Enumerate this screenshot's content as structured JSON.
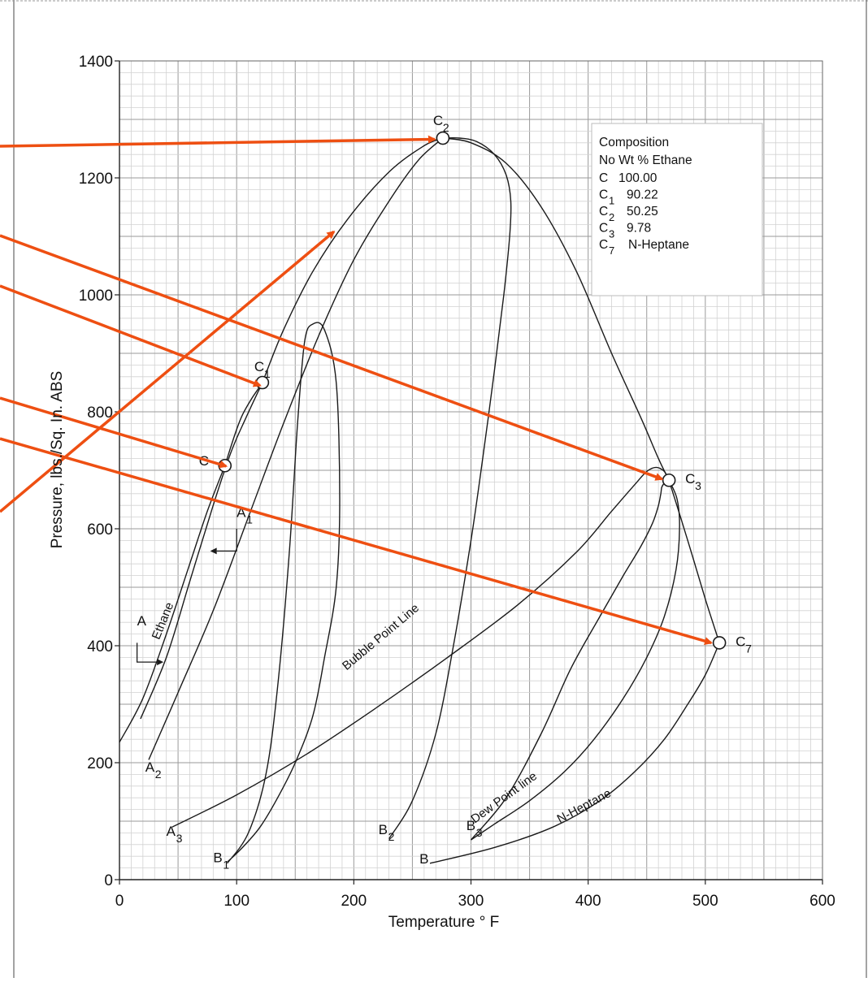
{
  "chart_data": {
    "type": "line",
    "xlabel": "Temperature  ° F",
    "ylabel": "Pressure, lbs./Sq. In. ABS",
    "xlim": [
      0,
      600
    ],
    "ylim": [
      0,
      1400
    ],
    "x_ticks": [
      "0",
      "100",
      "200",
      "300",
      "400",
      "500",
      "600"
    ],
    "y_ticks": [
      "0",
      "200",
      "400",
      "600",
      "800",
      "1000",
      "1200",
      "1400"
    ],
    "grid": true,
    "legend": {
      "title": "Composition",
      "header": "No Wt % Ethane",
      "rows": [
        {
          "sym": "C",
          "sub": "",
          "val": "100.00"
        },
        {
          "sym": "C",
          "sub": "1",
          "val": "90.22"
        },
        {
          "sym": "C",
          "sub": "2",
          "val": "50.25"
        },
        {
          "sym": "C",
          "sub": "3",
          "val": "9.78"
        },
        {
          "sym": "C",
          "sub": "7",
          "val": "N-Heptane"
        }
      ],
      "placement": "top-right"
    },
    "critical_points": [
      {
        "label": "C",
        "sub": "",
        "x": 90,
        "y": 708
      },
      {
        "label": "C",
        "sub": "1",
        "x": 122,
        "y": 850
      },
      {
        "label": "C",
        "sub": "2",
        "x": 276,
        "y": 1268
      },
      {
        "label": "C",
        "sub": "3",
        "x": 469,
        "y": 683
      },
      {
        "label": "C",
        "sub": "7",
        "x": 512,
        "y": 405
      }
    ],
    "series": [
      {
        "name": "Ethane",
        "x": [
          0,
          20,
          40,
          60,
          75,
          90
        ],
        "y": [
          235,
          310,
          420,
          540,
          630,
          708
        ]
      },
      {
        "x": [
          18,
          40,
          60,
          80,
          95,
          108,
          122
        ],
        "y": [
          275,
          380,
          510,
          640,
          730,
          790,
          850
        ]
      },
      {
        "x": [
          90,
          95,
          100,
          105,
          112,
          118,
          122
        ],
        "y": [
          708,
          740,
          770,
          795,
          820,
          838,
          850
        ]
      },
      {
        "x": [
          25,
          50,
          80,
          110,
          140,
          170,
          200,
          230,
          255,
          276
        ],
        "y": [
          205,
          320,
          460,
          620,
          780,
          930,
          1060,
          1160,
          1230,
          1268
        ]
      },
      {
        "x": [
          122,
          140,
          165,
          195,
          230,
          260,
          276
        ],
        "y": [
          850,
          940,
          1040,
          1130,
          1210,
          1255,
          1268
        ]
      },
      {
        "x": [
          92,
          110,
          125,
          135,
          145,
          152,
          158,
          165,
          175,
          185,
          188,
          185,
          175,
          165,
          150,
          135,
          120,
          105,
          92
        ],
        "y": [
          28,
          80,
          180,
          330,
          560,
          780,
          920,
          950,
          940,
          850,
          650,
          500,
          380,
          280,
          200,
          140,
          90,
          55,
          30
        ]
      },
      {
        "x": [
          230,
          250,
          270,
          285,
          300,
          310,
          320,
          328,
          333,
          334,
          330,
          320,
          305,
          290,
          276
        ],
        "y": [
          70,
          135,
          250,
          400,
          580,
          720,
          870,
          1000,
          1100,
          1160,
          1205,
          1240,
          1262,
          1268,
          1268
        ]
      },
      {
        "x": [
          300,
          330,
          360,
          385,
          410,
          430,
          445,
          455,
          460,
          462,
          463,
          466,
          469
        ],
        "y": [
          68,
          140,
          250,
          360,
          450,
          520,
          570,
          610,
          640,
          660,
          672,
          680,
          683
        ]
      },
      {
        "x": [
          276,
          300,
          330,
          360,
          390,
          420,
          445,
          460,
          469
        ],
        "y": [
          1268,
          1260,
          1225,
          1150,
          1040,
          900,
          790,
          720,
          683
        ]
      },
      {
        "name": "Bubble Point Line",
        "x": [
          45,
          100,
          160,
          220,
          280,
          340,
          390,
          420,
          440,
          450,
          458,
          465,
          469
        ],
        "y": [
          90,
          145,
          215,
          295,
          380,
          470,
          560,
          630,
          676,
          698,
          705,
          698,
          683
        ]
      },
      {
        "name": "Dew Point line",
        "x": [
          469,
          476,
          478,
          475,
          465,
          450,
          430,
          405,
          380,
          350,
          320,
          300
        ],
        "y": [
          683,
          650,
          600,
          530,
          450,
          380,
          310,
          240,
          185,
          135,
          95,
          68
        ]
      },
      {
        "x": [
          469,
          485,
          500,
          512
        ],
        "y": [
          683,
          580,
          480,
          405
        ]
      },
      {
        "name": "N-Heptane",
        "x": [
          265,
          320,
          370,
          410,
          440,
          465,
          485,
          500,
          512
        ],
        "y": [
          28,
          55,
          90,
          135,
          185,
          240,
          300,
          350,
          405
        ]
      }
    ],
    "annotations": [
      {
        "text": "A",
        "sub": "",
        "x": 15,
        "y": 435
      },
      {
        "text": "A",
        "sub": "1",
        "x": 100,
        "y": 620
      },
      {
        "text": "A",
        "sub": "2",
        "x": 22,
        "y": 185
      },
      {
        "text": "A",
        "sub": "3",
        "x": 40,
        "y": 75
      },
      {
        "text": "B",
        "sub": "",
        "x": 256,
        "y": 28
      },
      {
        "text": "B",
        "sub": "1",
        "x": 80,
        "y": 30
      },
      {
        "text": "B",
        "sub": "2",
        "x": 221,
        "y": 78
      },
      {
        "text": "B",
        "sub": "3",
        "x": 296,
        "y": 85
      },
      {
        "text": "Ethane",
        "sub": "",
        "x": 40,
        "y": 440
      },
      {
        "text": "Bubble Point Line",
        "sub": "",
        "x": 225,
        "y": 410
      },
      {
        "text": "Dew Point line",
        "sub": "",
        "x": 330,
        "y": 135
      },
      {
        "text": "N-Heptane",
        "sub": "",
        "x": 398,
        "y": 120
      }
    ],
    "pointer_arrows_color": "#ee4f12",
    "pointer_targets": [
      {
        "x": 269,
        "y": 1266
      },
      {
        "x": 463,
        "y": 685
      },
      {
        "x": 120,
        "y": 845
      },
      {
        "x": 91,
        "y": 707
      },
      {
        "x": 505,
        "y": 405
      },
      {
        "x": 183,
        "y": 1108
      }
    ]
  }
}
